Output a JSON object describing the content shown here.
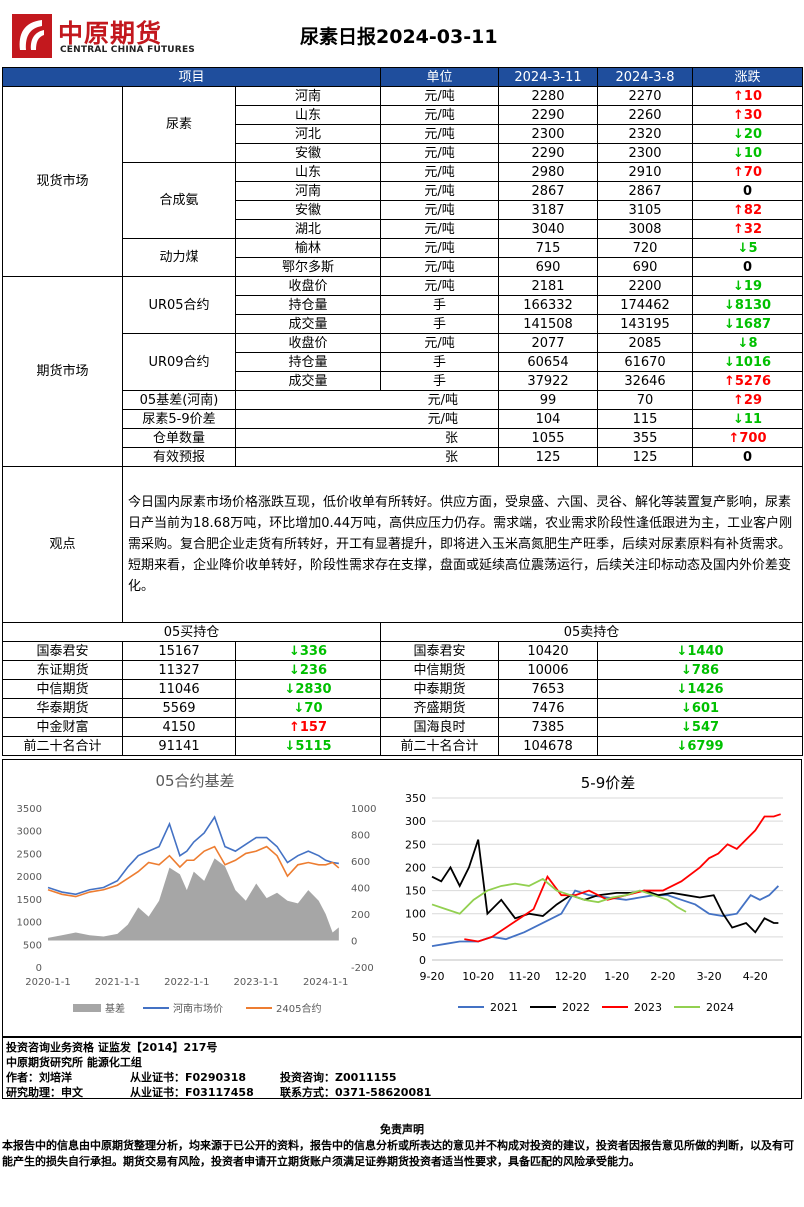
{
  "header": {
    "logo_cn": "中原期货",
    "logo_en": "CENTRAL CHINA FUTURES",
    "title": "尿素日报2024-03-11"
  },
  "table_header": {
    "item": "项目",
    "unit": "单位",
    "date1": "2024-3-11",
    "date2": "2024-3-8",
    "change": "涨跌"
  },
  "spot": {
    "label": "现货市场",
    "groups": [
      {
        "name": "尿素",
        "rows": [
          {
            "region": "河南",
            "unit": "元/吨",
            "v1": "2280",
            "v2": "2270",
            "change": "10",
            "dir": "up"
          },
          {
            "region": "山东",
            "unit": "元/吨",
            "v1": "2290",
            "v2": "2260",
            "change": "30",
            "dir": "up"
          },
          {
            "region": "河北",
            "unit": "元/吨",
            "v1": "2300",
            "v2": "2320",
            "change": "20",
            "dir": "down"
          },
          {
            "region": "安徽",
            "unit": "元/吨",
            "v1": "2290",
            "v2": "2300",
            "change": "10",
            "dir": "down"
          }
        ]
      },
      {
        "name": "合成氨",
        "rows": [
          {
            "region": "山东",
            "unit": "元/吨",
            "v1": "2980",
            "v2": "2910",
            "change": "70",
            "dir": "up"
          },
          {
            "region": "河南",
            "unit": "元/吨",
            "v1": "2867",
            "v2": "2867",
            "change": "0",
            "dir": "flat"
          },
          {
            "region": "安徽",
            "unit": "元/吨",
            "v1": "3187",
            "v2": "3105",
            "change": "82",
            "dir": "up"
          },
          {
            "region": "湖北",
            "unit": "元/吨",
            "v1": "3040",
            "v2": "3008",
            "change": "32",
            "dir": "up"
          }
        ]
      },
      {
        "name": "动力煤",
        "rows": [
          {
            "region": "榆林",
            "unit": "元/吨",
            "v1": "715",
            "v2": "720",
            "change": "5",
            "dir": "down"
          },
          {
            "region": "鄂尔多斯",
            "unit": "元/吨",
            "v1": "690",
            "v2": "690",
            "change": "0",
            "dir": "flat"
          }
        ]
      }
    ]
  },
  "futures": {
    "label": "期货市场",
    "groups": [
      {
        "name": "UR05合约",
        "rows": [
          {
            "region": "收盘价",
            "unit": "元/吨",
            "v1": "2181",
            "v2": "2200",
            "change": "19",
            "dir": "down"
          },
          {
            "region": "持仓量",
            "unit": "手",
            "v1": "166332",
            "v2": "174462",
            "change": "8130",
            "dir": "down"
          },
          {
            "region": "成交量",
            "unit": "手",
            "v1": "141508",
            "v2": "143195",
            "change": "1687",
            "dir": "down"
          }
        ]
      },
      {
        "name": "UR09合约",
        "rows": [
          {
            "region": "收盘价",
            "unit": "元/吨",
            "v1": "2077",
            "v2": "2085",
            "change": "8",
            "dir": "down"
          },
          {
            "region": "持仓量",
            "unit": "手",
            "v1": "60654",
            "v2": "61670",
            "change": "1016",
            "dir": "down"
          },
          {
            "region": "成交量",
            "unit": "手",
            "v1": "37922",
            "v2": "32646",
            "change": "5276",
            "dir": "up"
          }
        ]
      }
    ],
    "singles": [
      {
        "name": "05基差(河南)",
        "unit": "元/吨",
        "v1": "99",
        "v2": "70",
        "change": "29",
        "dir": "up"
      },
      {
        "name": "尿素5-9价差",
        "unit": "元/吨",
        "v1": "104",
        "v2": "115",
        "change": "11",
        "dir": "down"
      },
      {
        "name": "仓单数量",
        "unit": "张",
        "v1": "1055",
        "v2": "355",
        "change": "700",
        "dir": "up"
      },
      {
        "name": "有效预报",
        "unit": "张",
        "v1": "125",
        "v2": "125",
        "change": "0",
        "dir": "flat"
      }
    ]
  },
  "view": {
    "label": "观点",
    "text": "今日国内尿素市场价格涨跌互现，低价收单有所转好。供应方面，受泉盛、六国、灵谷、解化等装置复产影响，尿素日产当前为18.68万吨，环比增加0.44万吨，高供应压力仍存。需求端，农业需求阶段性逢低跟进为主，工业客户刚需采购。复合肥企业走货有所转好，开工有显著提升，即将进入玉米高氮肥生产旺季，后续对尿素原料有补货需求。短期来看，企业降价收单转好，阶段性需求存在支撑，盘面或延续高位震荡运行，后续关注印标动态及国内外价差变化。"
  },
  "positions": {
    "buy_title": "05买持仓",
    "sell_title": "05卖持仓",
    "rows": [
      {
        "b_name": "国泰君安",
        "b_val": "15167",
        "b_chg": "336",
        "b_dir": "down",
        "s_name": "国泰君安",
        "s_val": "10420",
        "s_chg": "1440",
        "s_dir": "down"
      },
      {
        "b_name": "东证期货",
        "b_val": "11327",
        "b_chg": "236",
        "b_dir": "down",
        "s_name": "中信期货",
        "s_val": "10006",
        "s_chg": "786",
        "s_dir": "down"
      },
      {
        "b_name": "中信期货",
        "b_val": "11046",
        "b_chg": "2830",
        "b_dir": "down",
        "s_name": "中泰期货",
        "s_val": "7653",
        "s_chg": "1426",
        "s_dir": "down"
      },
      {
        "b_name": "华泰期货",
        "b_val": "5569",
        "b_chg": "70",
        "b_dir": "down",
        "s_name": "齐盛期货",
        "s_val": "7476",
        "s_chg": "601",
        "s_dir": "down"
      },
      {
        "b_name": "中金财富",
        "b_val": "4150",
        "b_chg": "157",
        "b_dir": "up",
        "s_name": "国海良时",
        "s_val": "7385",
        "s_chg": "547",
        "s_dir": "down"
      },
      {
        "b_name": "前二十名合计",
        "b_val": "91141",
        "b_chg": "5115",
        "b_dir": "down",
        "s_name": "前二十名合计",
        "s_val": "104678",
        "s_chg": "6799",
        "s_dir": "down"
      }
    ]
  },
  "chart_data": [
    {
      "type": "line",
      "title": "05合约基差",
      "x_ticks": [
        "2020-1-1",
        "2021-1-1",
        "2022-1-1",
        "2023-1-1",
        "2024-1-1"
      ],
      "y_left_ticks": [
        "0",
        "500",
        "1000",
        "1500",
        "2000",
        "2500",
        "3000",
        "3500"
      ],
      "y_right_ticks": [
        "-200",
        "0",
        "200",
        "400",
        "600",
        "800",
        "1000"
      ],
      "ylim_left": [
        0,
        3500
      ],
      "ylim_right": [
        -200,
        1000
      ],
      "series": [
        {
          "name": "基差",
          "kind": "area",
          "axis": "right",
          "color": "#a6a6a6",
          "x": [
            2020.0,
            2020.2,
            2020.4,
            2020.6,
            2020.8,
            2021.0,
            2021.15,
            2021.3,
            2021.45,
            2021.6,
            2021.75,
            2021.9,
            2022.0,
            2022.1,
            2022.25,
            2022.4,
            2022.55,
            2022.7,
            2022.85,
            2023.0,
            2023.15,
            2023.3,
            2023.45,
            2023.6,
            2023.75,
            2023.9,
            2024.0,
            2024.1,
            2024.19
          ],
          "y": [
            20,
            40,
            60,
            40,
            30,
            50,
            120,
            250,
            180,
            300,
            550,
            500,
            380,
            520,
            450,
            620,
            560,
            380,
            300,
            430,
            320,
            360,
            300,
            280,
            380,
            300,
            200,
            60,
            99
          ]
        },
        {
          "name": "河南市场价",
          "kind": "line",
          "axis": "left",
          "color": "#4472c4",
          "x": [
            2020.0,
            2020.2,
            2020.4,
            2020.6,
            2020.8,
            2021.0,
            2021.15,
            2021.3,
            2021.45,
            2021.6,
            2021.75,
            2021.9,
            2022.0,
            2022.1,
            2022.25,
            2022.4,
            2022.55,
            2022.7,
            2022.85,
            2023.0,
            2023.15,
            2023.3,
            2023.45,
            2023.6,
            2023.75,
            2023.9,
            2024.0,
            2024.1,
            2024.19
          ],
          "y": [
            1750,
            1650,
            1600,
            1700,
            1750,
            1900,
            2200,
            2450,
            2550,
            2650,
            3150,
            2450,
            2550,
            2750,
            2950,
            3300,
            2650,
            2550,
            2700,
            2850,
            2850,
            2650,
            2300,
            2450,
            2550,
            2450,
            2350,
            2300,
            2280
          ]
        },
        {
          "name": "2405合约",
          "kind": "line",
          "axis": "left",
          "color": "#ed7d31",
          "x": [
            2020.0,
            2020.2,
            2020.4,
            2020.6,
            2020.8,
            2021.0,
            2021.15,
            2021.3,
            2021.45,
            2021.6,
            2021.75,
            2021.9,
            2022.0,
            2022.1,
            2022.25,
            2022.4,
            2022.55,
            2022.7,
            2022.85,
            2023.0,
            2023.15,
            2023.3,
            2023.45,
            2023.6,
            2023.75,
            2023.9,
            2024.0,
            2024.1,
            2024.19
          ],
          "y": [
            1700,
            1600,
            1550,
            1650,
            1700,
            1800,
            1950,
            2100,
            2300,
            2250,
            2450,
            2200,
            2350,
            2350,
            2550,
            2650,
            2250,
            2350,
            2500,
            2550,
            2650,
            2450,
            2000,
            2250,
            2300,
            2250,
            2250,
            2300,
            2181
          ]
        }
      ]
    },
    {
      "type": "line",
      "title": "5-9价差",
      "x_ticks": [
        "9-20",
        "10-20",
        "11-20",
        "12-20",
        "1-20",
        "2-20",
        "3-20",
        "4-20"
      ],
      "y_ticks": [
        "0",
        "50",
        "100",
        "150",
        "200",
        "250",
        "300",
        "350"
      ],
      "ylim": [
        -10,
        350
      ],
      "x_range": [
        0,
        7.6
      ],
      "series": [
        {
          "name": "2021",
          "color": "#4472c4",
          "x": [
            0,
            0.3,
            0.6,
            1.0,
            1.3,
            1.6,
            2.0,
            2.4,
            2.8,
            3.1,
            3.4,
            3.8,
            4.2,
            4.5,
            4.8,
            5.1,
            5.4,
            5.7,
            6.0,
            6.3,
            6.6,
            6.9,
            7.1,
            7.3,
            7.5
          ],
          "y": [
            30,
            35,
            40,
            40,
            50,
            45,
            60,
            80,
            100,
            150,
            140,
            135,
            130,
            135,
            140,
            140,
            130,
            120,
            100,
            95,
            100,
            140,
            130,
            140,
            160
          ]
        },
        {
          "name": "2022",
          "color": "#000000",
          "x": [
            0,
            0.2,
            0.4,
            0.6,
            0.8,
            1.0,
            1.2,
            1.5,
            1.8,
            2.1,
            2.4,
            2.7,
            3.0,
            3.3,
            3.6,
            4.0,
            4.3,
            4.6,
            4.9,
            5.2,
            5.5,
            5.8,
            6.1,
            6.3,
            6.5,
            6.8,
            7.0,
            7.2,
            7.4,
            7.5
          ],
          "y": [
            180,
            170,
            200,
            160,
            200,
            260,
            100,
            130,
            90,
            100,
            95,
            120,
            140,
            130,
            140,
            145,
            145,
            150,
            140,
            145,
            140,
            135,
            140,
            100,
            70,
            80,
            60,
            90,
            80,
            80
          ]
        },
        {
          "name": "2023",
          "color": "#ff0000",
          "x": [
            0.7,
            1.0,
            1.3,
            1.6,
            1.9,
            2.2,
            2.5,
            2.8,
            3.1,
            3.4,
            3.8,
            4.2,
            4.6,
            5.0,
            5.4,
            5.8,
            6.0,
            6.2,
            6.4,
            6.6,
            6.8,
            7.0,
            7.2,
            7.4,
            7.55
          ],
          "y": [
            45,
            40,
            50,
            70,
            90,
            110,
            180,
            140,
            140,
            150,
            130,
            140,
            150,
            150,
            170,
            200,
            220,
            230,
            250,
            240,
            260,
            280,
            310,
            310,
            315
          ]
        },
        {
          "name": "2024",
          "color": "#92d050",
          "x": [
            0,
            0.3,
            0.6,
            0.9,
            1.2,
            1.5,
            1.8,
            2.1,
            2.4,
            2.7,
            3.0,
            3.3,
            3.6,
            3.9,
            4.2,
            4.5,
            4.8,
            5.1,
            5.3,
            5.5
          ],
          "y": [
            120,
            110,
            100,
            130,
            150,
            160,
            165,
            160,
            175,
            150,
            140,
            130,
            125,
            135,
            140,
            150,
            140,
            130,
            115,
            104
          ]
        }
      ]
    }
  ],
  "info": {
    "line1": "投资咨询业务资格    证监发【2014】217号",
    "line2": "中原期货研究所    能源化工组",
    "line3a": "作者：刘培洋",
    "line3b": "从业证书：F0290318",
    "line3c": "投资咨询：Z0011155",
    "line4a": "研究助理：申文",
    "line4b": "从业证书：F03117458",
    "line4c": "联系方式：0371-58620081"
  },
  "disclaimer": {
    "title": "免责声明",
    "text": "本报告中的信息由中原期货整理分析，均来源于已公开的资料，报告中的信息分析或所表达的意见并不构成对投资的建议，投资者因报告意见所做的判断，以及有可能产生的损失自行承担。期货交易有风险，投资者申请开立期货账户须满足证券期货投资者适当性要求，具备匹配的风险承受能力。"
  }
}
